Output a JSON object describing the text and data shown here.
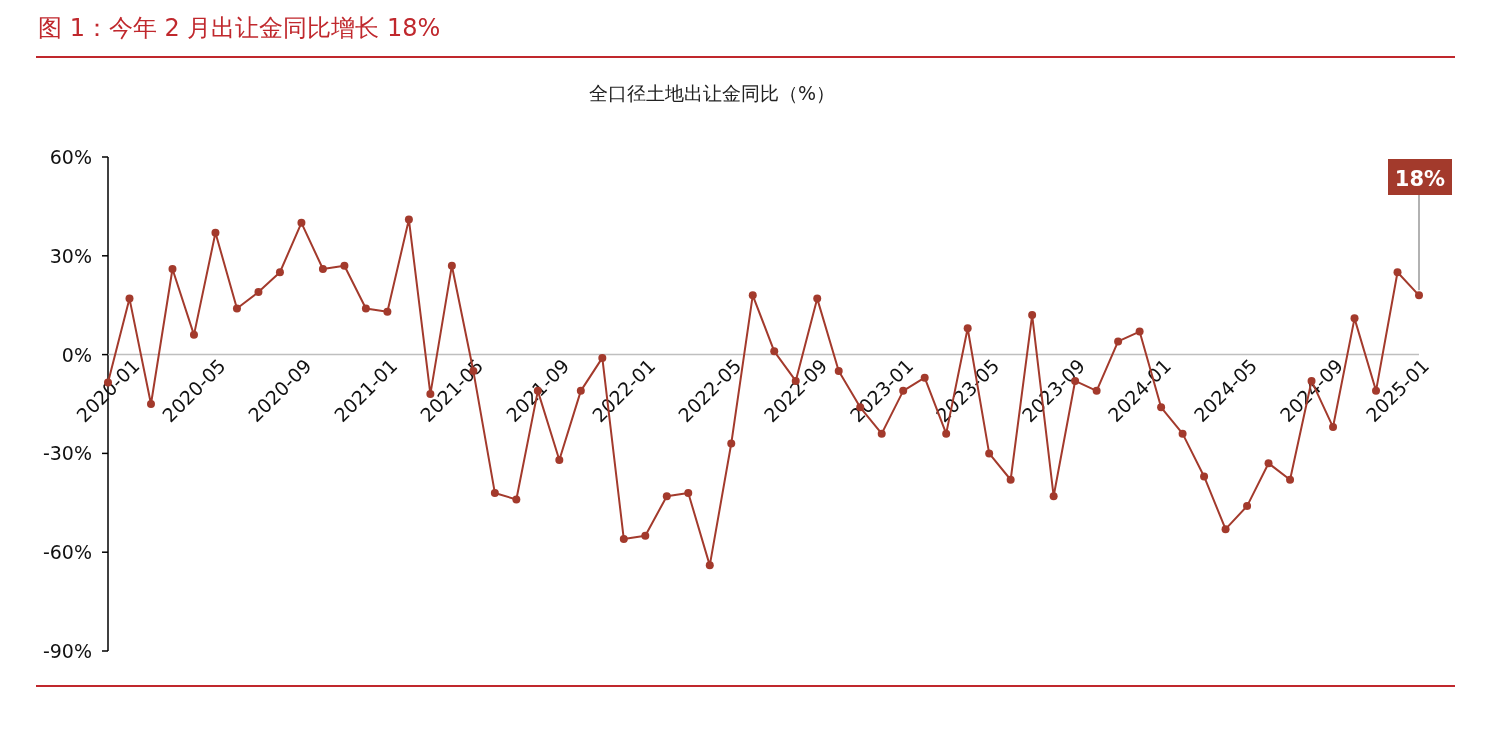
{
  "chart_data": {
    "type": "line",
    "title": "图 1：今年 2 月出让金同比增长 18%",
    "subtitle": "全口径土地出让金同比（%）",
    "categories": [
      "2020-01",
      null,
      null,
      null,
      "2020-05",
      null,
      null,
      null,
      "2020-09",
      null,
      null,
      null,
      "2021-01",
      null,
      null,
      null,
      "2021-05",
      null,
      null,
      null,
      "2021-09",
      null,
      null,
      null,
      "2022-01",
      null,
      null,
      null,
      "2022-05",
      null,
      null,
      null,
      "2022-09",
      null,
      null,
      null,
      "2023-01",
      null,
      null,
      null,
      "2023-05",
      null,
      null,
      null,
      "2023-09",
      null,
      null,
      null,
      "2024-01",
      null,
      null,
      null,
      "2024-05",
      null,
      null,
      null,
      "2024-09",
      null,
      null,
      null,
      "2025-01",
      null
    ],
    "series": [
      {
        "color": "#a33a2c",
        "values": [
          -8.5,
          17,
          -15,
          26,
          6,
          37,
          14,
          19,
          25,
          40,
          26,
          27,
          14,
          13,
          41,
          -12,
          27,
          -5,
          -42,
          -44,
          -11,
          -32,
          -11,
          -1,
          -56,
          -55,
          -43,
          -42,
          -64,
          -27,
          18,
          1,
          -8,
          17,
          -5,
          -16,
          -24,
          -11,
          -7,
          -24,
          8,
          -30,
          -38,
          12,
          -43,
          -8,
          -11,
          4,
          7,
          -16,
          -24,
          -37,
          -53,
          -46,
          -33,
          -38,
          -8,
          -22,
          11,
          -11,
          25,
          18
        ]
      }
    ],
    "ylim": [
      -90,
      60
    ],
    "yticks": [
      {
        "value": 60,
        "label": "60%"
      },
      {
        "value": 30,
        "label": "30%"
      },
      {
        "value": 0,
        "label": "0%"
      },
      {
        "value": -30,
        "label": "-30%"
      },
      {
        "value": -60,
        "label": "-60%"
      },
      {
        "value": -90,
        "label": "-90%"
      }
    ],
    "marker": "circle",
    "annotations": [
      {
        "text": "18%",
        "y": 18
      }
    ]
  }
}
